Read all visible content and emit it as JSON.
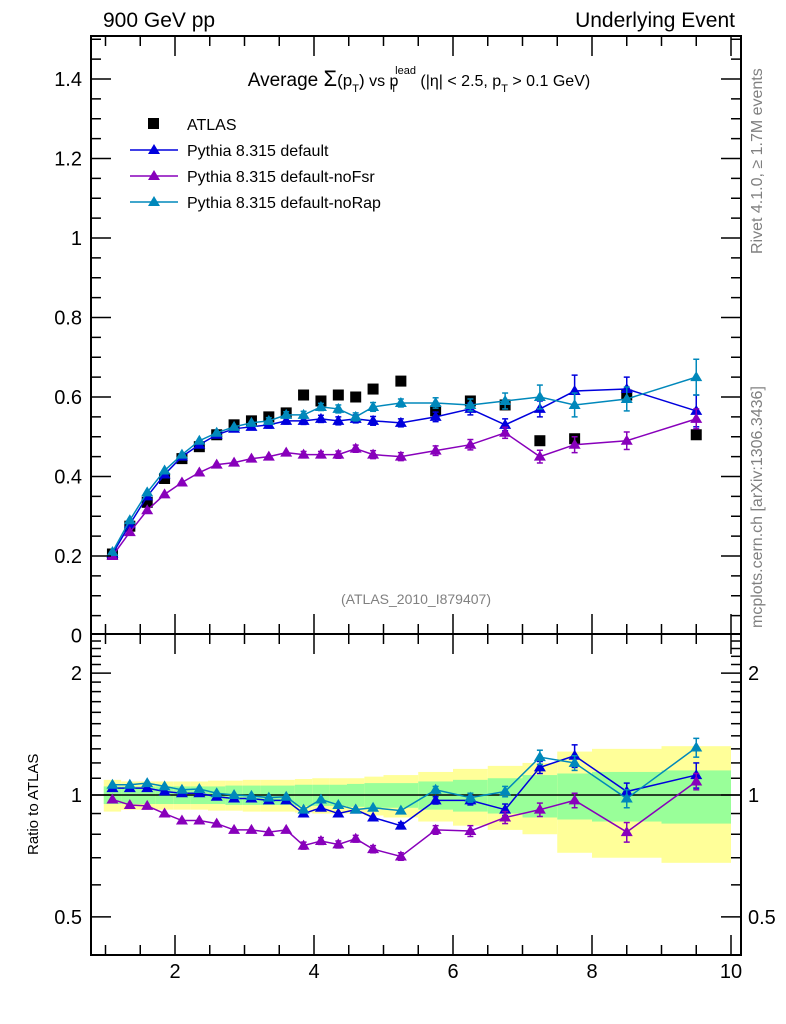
{
  "header": {
    "left": "900 GeV pp",
    "right": "Underlying Event"
  },
  "side_labels": {
    "rivet": "Rivet 4.1.0, ≥ 1.7M events",
    "mcplots": "mcplots.cern.ch [arXiv:1306.3436]"
  },
  "analysis_id": "(ATLAS_2010_I879407)",
  "chart_data": [
    {
      "type": "scatter",
      "panel": "main",
      "title_parts": {
        "prefix": "Average ",
        "sigma": "Σ",
        "pt": "(p",
        "sub_t": "T",
        "close": ")",
        "vs": " vs p",
        "sup_lead": "lead",
        "sub_t2": "T",
        "cut1": " (|η| < 2.5, p",
        "sub_t3": "T",
        "cut2": " > 0.1 GeV)"
      },
      "xlabel": "",
      "ylabel": "",
      "xlim": [
        0.8,
        10.15
      ],
      "ylim": [
        0,
        1.508
      ],
      "yticks": [
        0,
        0.2,
        0.4,
        0.6,
        0.8,
        1,
        1.2,
        1.4
      ],
      "ytick_labels": [
        "0",
        "0.2",
        "0.4",
        "0.6",
        "0.8",
        "1",
        "1.2",
        "1.4"
      ],
      "legend_placement": "top-left",
      "x": [
        1.1,
        1.35,
        1.6,
        1.85,
        2.1,
        2.35,
        2.6,
        2.85,
        3.1,
        3.35,
        3.6,
        3.85,
        4.1,
        4.35,
        4.6,
        4.85,
        5.25,
        5.75,
        6.25,
        6.75,
        7.25,
        7.75,
        8.5,
        9.5
      ],
      "series": [
        {
          "name": "ATLAS",
          "marker": "square",
          "color": "#000000",
          "values": [
            0.205,
            0.275,
            0.335,
            0.395,
            0.445,
            0.475,
            0.505,
            0.53,
            0.54,
            0.55,
            0.56,
            0.605,
            0.59,
            0.605,
            0.6,
            0.62,
            0.64,
            0.565,
            0.59,
            0.58,
            0.49,
            0.495,
            0.605,
            0.505
          ],
          "errors": [
            0.005,
            0.005,
            0.006,
            0.006,
            0.007,
            0.007,
            0.008,
            0.008,
            0.008,
            0.009,
            0.009,
            0.01,
            0.01,
            0.01,
            0.01,
            0.011,
            0.011,
            0.012,
            0.013,
            0.014,
            0.015,
            0.016,
            0.018,
            0.02
          ]
        },
        {
          "name": "Pythia 8.315 default",
          "marker": "triangle",
          "color": "#0000dd",
          "values": [
            0.205,
            0.28,
            0.35,
            0.405,
            0.45,
            0.48,
            0.505,
            0.52,
            0.525,
            0.53,
            0.54,
            0.54,
            0.545,
            0.54,
            0.545,
            0.54,
            0.535,
            0.55,
            0.57,
            0.53,
            0.57,
            0.615,
            0.62,
            0.565
          ],
          "errors": [
            0.003,
            0.004,
            0.004,
            0.005,
            0.005,
            0.006,
            0.006,
            0.007,
            0.007,
            0.008,
            0.008,
            0.009,
            0.009,
            0.01,
            0.01,
            0.011,
            0.01,
            0.012,
            0.015,
            0.015,
            0.02,
            0.04,
            0.03,
            0.04
          ]
        },
        {
          "name": "Pythia 8.315 default-noFsr",
          "marker": "triangle",
          "color": "#8800bb",
          "values": [
            0.2,
            0.26,
            0.315,
            0.355,
            0.385,
            0.41,
            0.43,
            0.435,
            0.445,
            0.45,
            0.46,
            0.455,
            0.455,
            0.455,
            0.47,
            0.455,
            0.45,
            0.465,
            0.48,
            0.51,
            0.45,
            0.48,
            0.49,
            0.545
          ],
          "errors": [
            0.003,
            0.003,
            0.004,
            0.004,
            0.005,
            0.005,
            0.005,
            0.006,
            0.006,
            0.007,
            0.007,
            0.008,
            0.008,
            0.009,
            0.009,
            0.01,
            0.01,
            0.012,
            0.013,
            0.014,
            0.016,
            0.02,
            0.022,
            0.025
          ]
        },
        {
          "name": "Pythia 8.315 default-noRap",
          "marker": "triangle",
          "color": "#0088bb",
          "values": [
            0.21,
            0.29,
            0.36,
            0.415,
            0.455,
            0.49,
            0.51,
            0.525,
            0.535,
            0.54,
            0.555,
            0.555,
            0.575,
            0.57,
            0.55,
            0.575,
            0.585,
            0.585,
            0.58,
            0.59,
            0.6,
            0.58,
            0.595,
            0.65
          ],
          "errors": [
            0.003,
            0.004,
            0.004,
            0.005,
            0.005,
            0.006,
            0.006,
            0.007,
            0.007,
            0.008,
            0.008,
            0.009,
            0.009,
            0.01,
            0.01,
            0.011,
            0.01,
            0.013,
            0.015,
            0.02,
            0.03,
            0.03,
            0.03,
            0.045
          ]
        }
      ]
    },
    {
      "type": "scatter",
      "panel": "ratio",
      "ylabel": "Ratio to ATLAS",
      "yscale": "log",
      "ylim": [
        0.4,
        2.5
      ],
      "yticks": [
        0.5,
        1,
        2
      ],
      "ytick_labels": [
        "0.5",
        "1",
        "2"
      ],
      "xlim": [
        0.8,
        10.15
      ],
      "xticks": [
        2,
        4,
        6,
        8,
        10
      ],
      "xtick_labels": [
        "2",
        "4",
        "6",
        "8",
        "10"
      ],
      "bands": {
        "x_edges": [
          0.975,
          1.225,
          1.475,
          1.725,
          1.975,
          2.225,
          2.475,
          2.725,
          2.975,
          3.225,
          3.475,
          3.725,
          3.975,
          4.225,
          4.475,
          4.725,
          5.0,
          5.5,
          6.0,
          6.5,
          7.0,
          7.5,
          8.0,
          9.0,
          10.0
        ],
        "stat_color": "#99ff99",
        "total_color": "#ffff99",
        "stat_half_width": [
          0.05,
          0.05,
          0.05,
          0.05,
          0.05,
          0.05,
          0.05,
          0.055,
          0.055,
          0.055,
          0.055,
          0.06,
          0.06,
          0.06,
          0.065,
          0.07,
          0.07,
          0.08,
          0.09,
          0.1,
          0.12,
          0.13,
          0.14,
          0.15
        ],
        "total_half_width": [
          0.09,
          0.08,
          0.08,
          0.08,
          0.08,
          0.08,
          0.085,
          0.085,
          0.09,
          0.09,
          0.09,
          0.095,
          0.1,
          0.1,
          0.1,
          0.11,
          0.12,
          0.14,
          0.16,
          0.18,
          0.2,
          0.28,
          0.3,
          0.32
        ]
      },
      "series": [
        {
          "name": "Pythia 8.315 default",
          "color": "#0000dd",
          "values": [
            1.04,
            1.04,
            1.04,
            1.02,
            1.01,
            1.01,
            0.99,
            0.98,
            0.98,
            0.97,
            0.97,
            0.9,
            0.93,
            0.9,
            0.92,
            0.88,
            0.84,
            0.97,
            0.97,
            0.92,
            1.17,
            1.25,
            1.02,
            1.12
          ],
          "errors": [
            0.01,
            0.01,
            0.01,
            0.01,
            0.01,
            0.01,
            0.01,
            0.01,
            0.01,
            0.01,
            0.01,
            0.015,
            0.015,
            0.015,
            0.015,
            0.015,
            0.015,
            0.02,
            0.025,
            0.03,
            0.04,
            0.08,
            0.05,
            0.08
          ]
        },
        {
          "name": "Pythia 8.315 default-noFsr",
          "color": "#8800bb",
          "values": [
            0.975,
            0.945,
            0.94,
            0.9,
            0.865,
            0.865,
            0.85,
            0.82,
            0.82,
            0.81,
            0.82,
            0.75,
            0.77,
            0.755,
            0.78,
            0.735,
            0.705,
            0.82,
            0.815,
            0.88,
            0.92,
            0.97,
            0.81,
            1.08
          ],
          "errors": [
            0.01,
            0.01,
            0.01,
            0.01,
            0.01,
            0.01,
            0.01,
            0.01,
            0.012,
            0.012,
            0.012,
            0.015,
            0.015,
            0.015,
            0.015,
            0.015,
            0.015,
            0.02,
            0.025,
            0.03,
            0.035,
            0.04,
            0.045,
            0.05
          ]
        },
        {
          "name": "Pythia 8.315 default-noRap",
          "color": "#0088bb",
          "values": [
            1.06,
            1.06,
            1.07,
            1.05,
            1.03,
            1.035,
            1.01,
            1.0,
            0.995,
            0.985,
            0.99,
            0.92,
            0.975,
            0.945,
            0.92,
            0.93,
            0.915,
            1.03,
            0.985,
            1.02,
            1.24,
            1.2,
            0.98,
            1.31
          ],
          "errors": [
            0.01,
            0.01,
            0.01,
            0.01,
            0.01,
            0.01,
            0.01,
            0.01,
            0.01,
            0.01,
            0.01,
            0.015,
            0.015,
            0.015,
            0.015,
            0.015,
            0.015,
            0.02,
            0.025,
            0.03,
            0.05,
            0.05,
            0.05,
            0.07
          ]
        }
      ]
    }
  ]
}
